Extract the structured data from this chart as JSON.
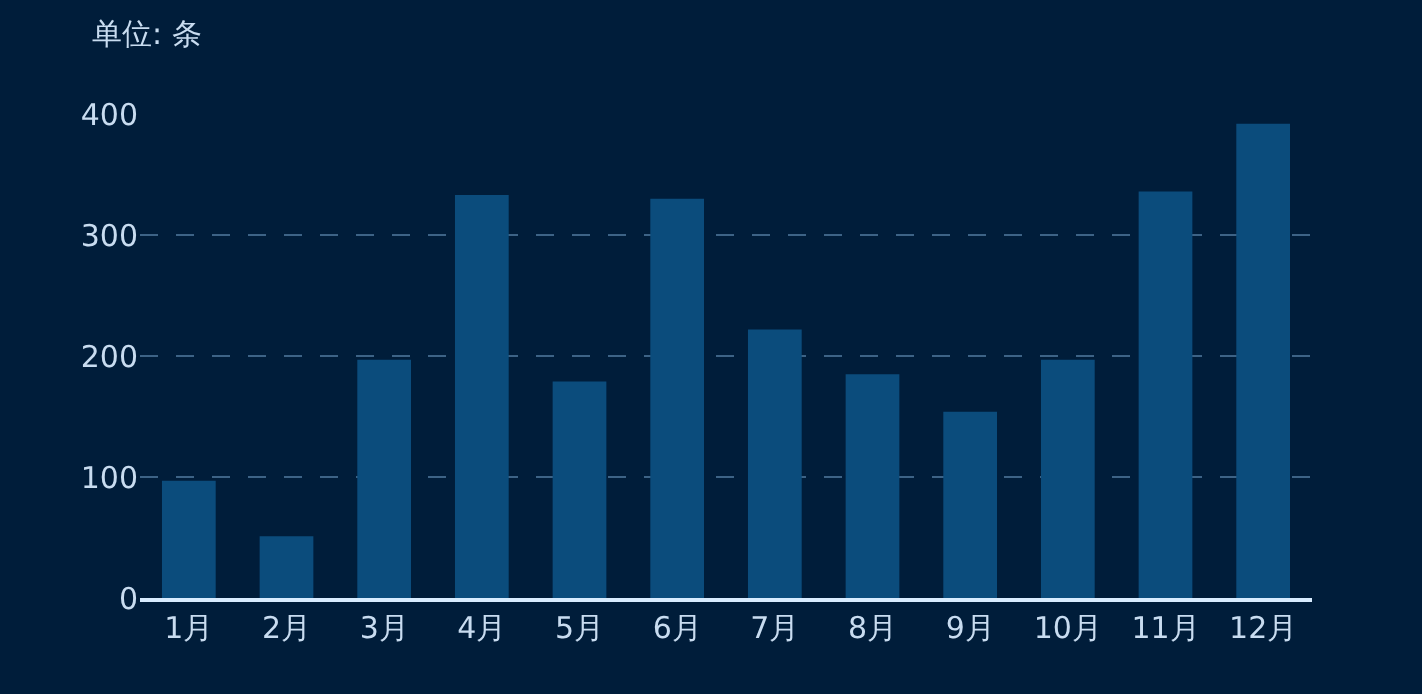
{
  "chart_data": {
    "type": "bar",
    "ylabel": "单位: 条",
    "categories": [
      "1月",
      "2月",
      "3月",
      "4月",
      "5月",
      "6月",
      "7月",
      "8月",
      "9月",
      "10月",
      "11月",
      "12月"
    ],
    "values": [
      97,
      51,
      197,
      333,
      179,
      330,
      222,
      185,
      154,
      197,
      336,
      392
    ],
    "color": "#0b4c7c",
    "ylim": [
      0,
      400
    ],
    "yticks": [
      0,
      100,
      200,
      300,
      400
    ],
    "grid": "y",
    "legend": false
  }
}
